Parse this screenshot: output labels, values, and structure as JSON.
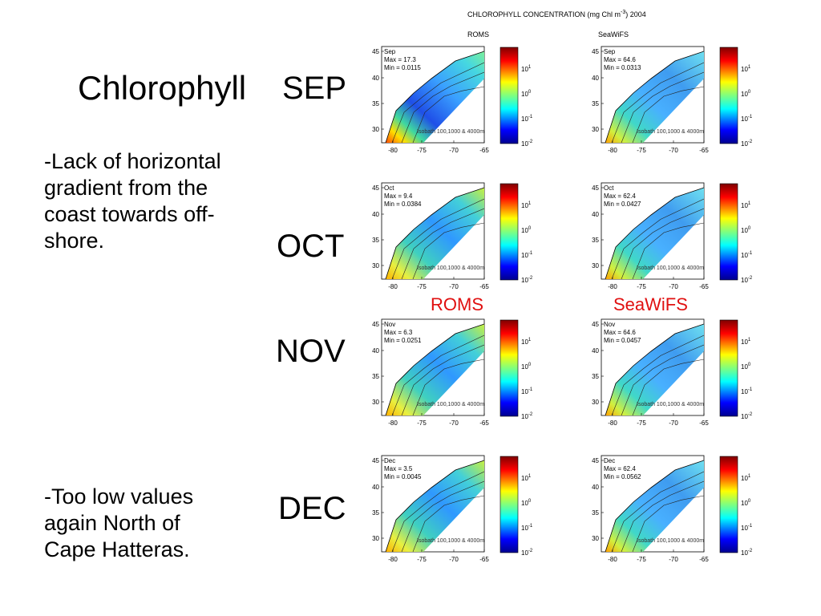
{
  "header": {
    "figure_title": "CHLOROPHYLL CONCENTRATION (mg Chl m",
    "figure_title_exp": "-3",
    "figure_title_end": ") 2004",
    "col_roms": "ROMS",
    "col_seawifs": "SeaWiFS"
  },
  "title": "Chlorophyll",
  "months": [
    "SEP",
    "OCT",
    "NOV",
    "DEC"
  ],
  "notes": {
    "note1": [
      "-Lack of horizontal",
      "gradient from the",
      "coast towards off-",
      "shore."
    ],
    "note2": [
      "-Too low values",
      "again North of",
      "Cape Hatteras."
    ]
  },
  "labels": {
    "roms": "ROMS",
    "seawifs": "SeaWiFS"
  },
  "map_common": {
    "ylabels": [
      "45",
      "40",
      "35",
      "30"
    ],
    "xlabels": [
      "-80",
      "-75",
      "-70",
      "-65"
    ],
    "isobath": "Isobath 100,1000 & 4000m",
    "cb_base": "10",
    "cb_exps": [
      "1",
      "0",
      "-1",
      "-2"
    ]
  },
  "panels": [
    {
      "month": "Sep",
      "max": "Max = 17.3",
      "min": "Min = 0.0115",
      "source": "roms"
    },
    {
      "month": "Sep",
      "max": "Max = 64.6",
      "min": "Min = 0.0313",
      "source": "seawifs"
    },
    {
      "month": "Oct",
      "max": "Max = 9.4",
      "min": "Min = 0.0384",
      "source": "roms"
    },
    {
      "month": "Oct",
      "max": "Max = 62.4",
      "min": "Min = 0.0427",
      "source": "seawifs"
    },
    {
      "month": "Nov",
      "max": "Max = 6.3",
      "min": "Min = 0.0251",
      "source": "roms"
    },
    {
      "month": "Nov",
      "max": "Max = 64.6",
      "min": "Min = 0.0457",
      "source": "seawifs"
    },
    {
      "month": "Dec",
      "max": "Max = 3.5",
      "min": "Min = 0.0045",
      "source": "roms"
    },
    {
      "month": "Dec",
      "max": "Max = 62.4",
      "min": "Min = 0.0562",
      "source": "seawifs"
    }
  ]
}
